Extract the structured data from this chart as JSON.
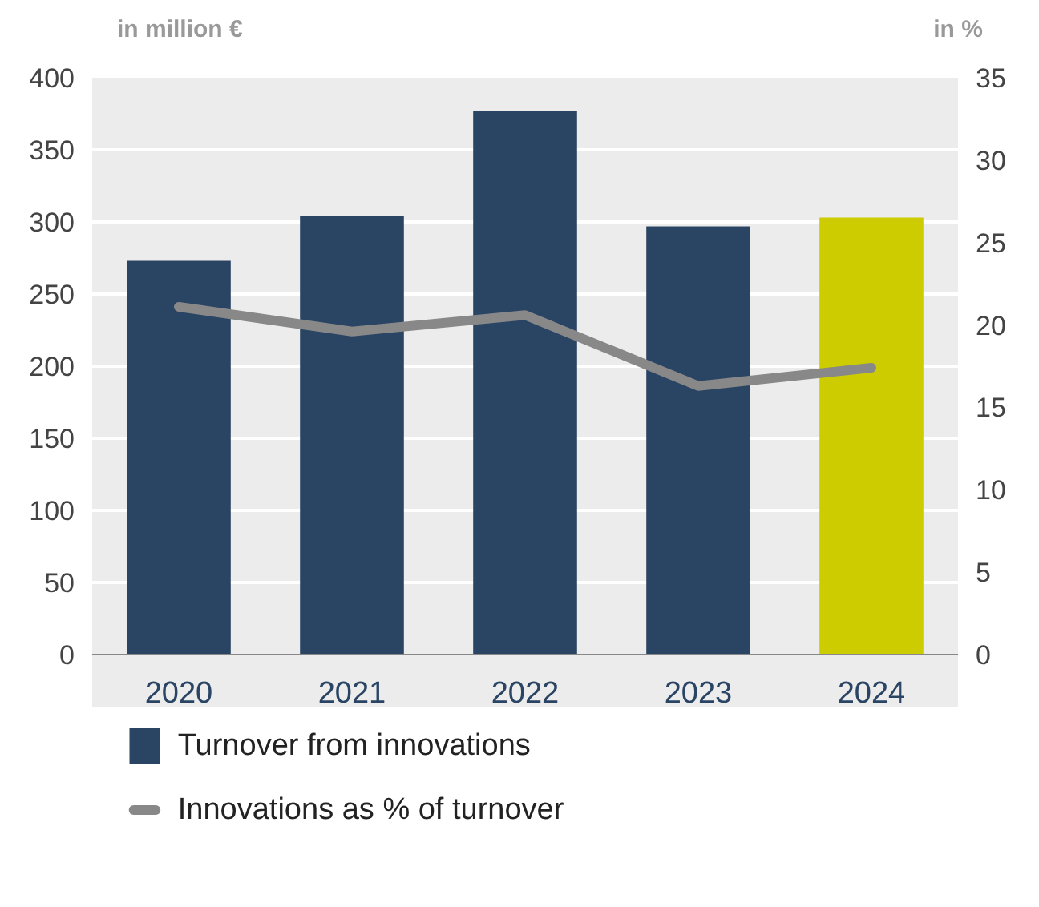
{
  "chart_data": {
    "type": "bar",
    "ylabel": "in million €",
    "y2label": "in %",
    "categories": [
      "2020",
      "2021",
      "2022",
      "2023",
      "2024"
    ],
    "series": [
      {
        "name": "Turnover from innovations",
        "color": "#2a4464",
        "colors": [
          "#2a4464",
          "#2a4464",
          "#2a4464",
          "#2a4464",
          "#cccc00"
        ],
        "values": [
          273,
          304,
          377,
          297,
          303
        ]
      },
      {
        "name": "Innovations as % of turnover",
        "type": "line",
        "axis": "y2",
        "color": "#888888",
        "values": [
          21.1,
          19.6,
          20.6,
          16.3,
          17.4
        ]
      }
    ],
    "ylim": [
      0,
      400
    ],
    "yticks": [
      0,
      50,
      100,
      150,
      200,
      250,
      300,
      350,
      400
    ],
    "y2lim": [
      0,
      35
    ],
    "y2ticks": [
      0,
      5,
      10,
      15,
      20,
      25,
      30,
      35
    ],
    "grid": "y",
    "legend": "bottom"
  }
}
